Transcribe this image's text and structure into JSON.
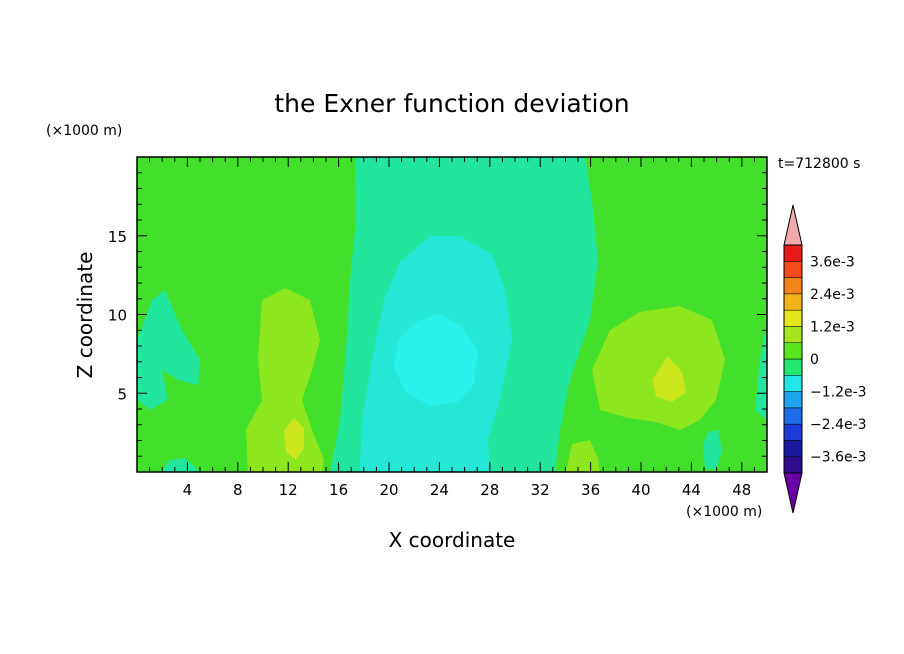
{
  "chart_data": {
    "type": "heatmap",
    "title": "the Exner function deviation",
    "xlabel": "X coordinate",
    "ylabel": "Z coordinate",
    "x_unit": "(×1000 m)",
    "y_unit": "(×1000 m)",
    "time_label": "t=712800 s",
    "xlim": [
      0,
      50
    ],
    "ylim": [
      0,
      20
    ],
    "x_ticks": [
      4,
      8,
      12,
      16,
      20,
      24,
      28,
      32,
      36,
      40,
      44,
      48
    ],
    "y_ticks": [
      5,
      10,
      15
    ],
    "colorbar": {
      "levels": [
        -0.0042,
        -0.0036,
        -0.003,
        -0.0024,
        -0.0018,
        -0.0012,
        -0.0006,
        0,
        0.0006,
        0.0012,
        0.0018,
        0.0024,
        0.003,
        0.0036,
        0.0042
      ],
      "labels": [
        {
          "text": "3.6e-3",
          "value": 0.0036
        },
        {
          "text": "2.4e-3",
          "value": 0.0024
        },
        {
          "text": "1.2e-3",
          "value": 0.0012
        },
        {
          "text": "0",
          "value": 0
        },
        {
          "text": "−1.2e-3",
          "value": -0.0012
        },
        {
          "text": "−2.4e-3",
          "value": -0.0024
        },
        {
          "text": "−3.6e-3",
          "value": -0.0036
        }
      ],
      "colors": [
        "#6a00a8",
        "#2e0a8c",
        "#1a1a9e",
        "#1f3ad6",
        "#1f6de6",
        "#1ea4f0",
        "#24e6e6",
        "#22e672",
        "#5ae61e",
        "#a6e61e",
        "#e6e61e",
        "#f2b41a",
        "#f2841a",
        "#f24a1a",
        "#e61a1a",
        "#f2aaaa"
      ]
    },
    "fields": [
      {
        "level": "0 to 6e-4",
        "color": "#42e02a",
        "region": "background"
      },
      {
        "level": "-6e-4 to 0",
        "color": "#22e69e",
        "region": "central band x≈16-32, left edge x≈0-3"
      },
      {
        "level": "-1.2e-3 to -6e-4",
        "color": "#26e6d6",
        "region": "central x≈18-30, z≈0-16"
      },
      {
        "level": "-1.8e-3 to -1.2e-3",
        "color": "#2af0ea",
        "region": "core x≈21-27, z≈5-10"
      },
      {
        "level": "6e-4 to 1.2e-3",
        "color": "#8ee61e",
        "region": "x≈9-15 z≈0-11; x≈36-47 z≈2-10"
      },
      {
        "level": "1.2e-3 to 1.8e-3",
        "color": "#cce61e",
        "region": "x≈12-13 z≈1-3; x≈41-43 z≈5-7"
      }
    ]
  }
}
